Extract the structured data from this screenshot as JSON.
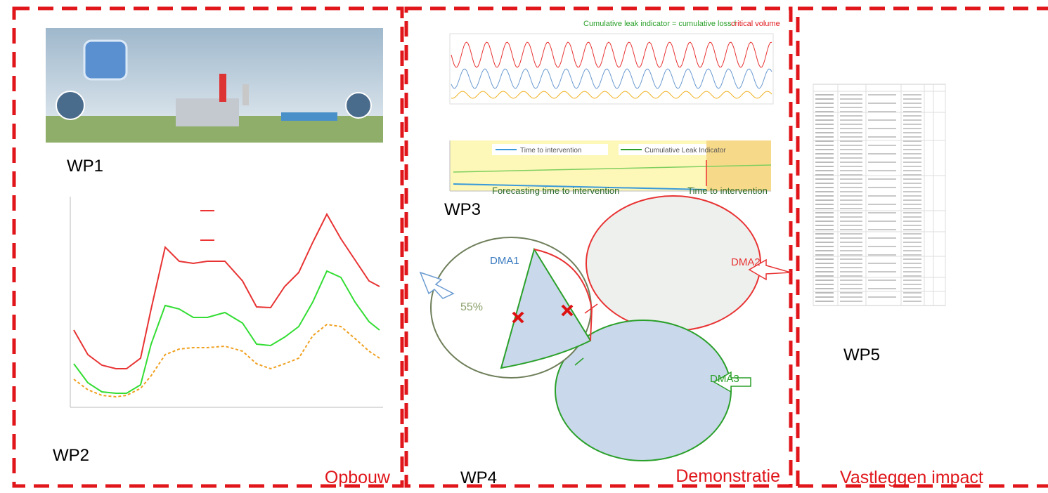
{
  "work_packages": [
    "WP1",
    "WP2",
    "WP3",
    "WP4",
    "WP5"
  ],
  "sections": [
    "Opbouw",
    "Demonstratie",
    "Vastleggen impact"
  ],
  "wp3": {
    "title_main": "Cumulative leak indicator = cumulative loss /",
    "title_critical": "critical volume",
    "legend": [
      "Time to intervention",
      "Cumulative Leak Indicator"
    ],
    "caption_left": "Forecasting time to intervention",
    "caption_right": "Time to intervention"
  },
  "wp4": {
    "zones": [
      "DMA1",
      "DMA2",
      "DMA3"
    ],
    "share": "55%"
  }
}
